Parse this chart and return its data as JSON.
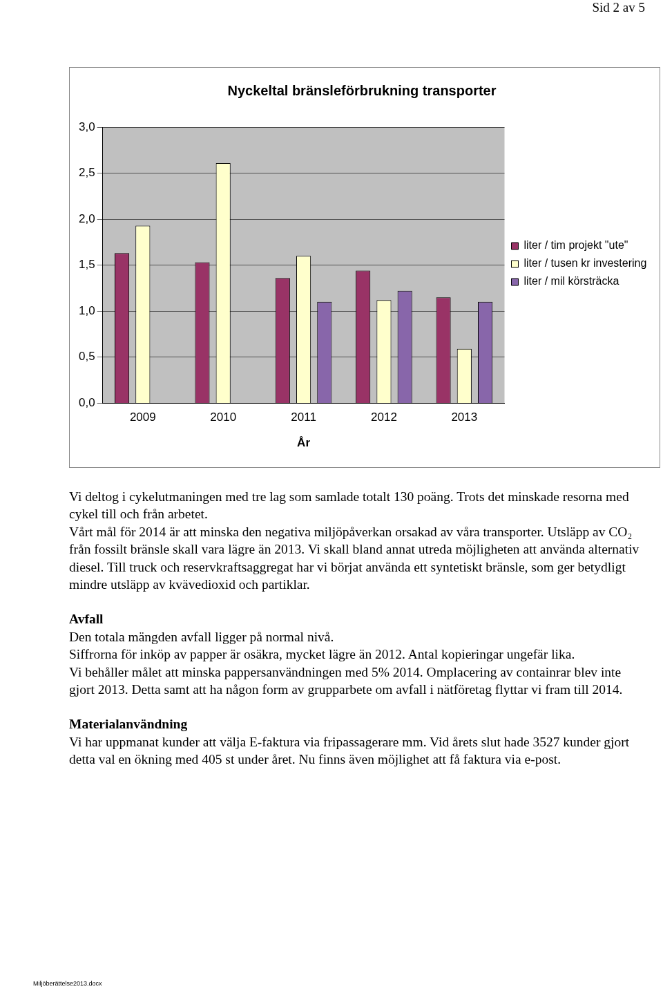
{
  "chart_data": {
    "type": "bar",
    "title": "Nyckeltal bränsleförbrukning transporter",
    "xlabel": "År",
    "categories": [
      "2009",
      "2010",
      "2011",
      "2012",
      "2013"
    ],
    "series": [
      {
        "name": "liter / tim projekt \"ute\"",
        "color": "#993366",
        "values": [
          1.63,
          1.53,
          1.36,
          1.44,
          1.15
        ]
      },
      {
        "name": "liter / tusen kr investering",
        "color": "#ffffcc",
        "values": [
          1.93,
          2.61,
          1.6,
          1.12,
          0.59
        ]
      },
      {
        "name": "liter / mil körsträcka",
        "color": "#8866aa",
        "values": [
          null,
          null,
          1.1,
          1.22,
          1.1
        ]
      }
    ],
    "ylim": [
      0,
      3
    ],
    "yticks": [
      {
        "value": 0,
        "label": "0,0"
      },
      {
        "value": 0.5,
        "label": "0,5"
      },
      {
        "value": 1,
        "label": "1,0"
      },
      {
        "value": 1.5,
        "label": "1,5"
      },
      {
        "value": 2,
        "label": "2,0"
      },
      {
        "value": 2.5,
        "label": "2,5"
      },
      {
        "value": 3,
        "label": "3,0"
      }
    ],
    "grid": "y",
    "legend": "right",
    "annotations": [
      "Sid 2 av 5",
      "Vi deltog i cykelutmaningen med tre lag som samlade totalt 130 poäng. Trots det minskade resorna med cykel till och från arbetet.",
      "Vårt mål för 2014 är att minska den negativa miljöpåverkan orsakad av våra transporter. Utsläpp av CO₂ från fossilt bränsle skall vara lägre än 2013. Vi skall bland annat utreda möjligheten att använda alternativ diesel. Till truck och reservkraftsaggregat har vi börjat använda ett syntetiskt bränsle, som ger betydligt mindre utsläpp av kvävedioxid och partiklar.",
      "Avfall",
      "Den totala mängden avfall ligger på normal nivå.",
      "Siffrorna för inköp av papper är osäkra, mycket lägre än 2012. Antal kopieringar ungefär lika.",
      "Vi behåller målet att minska pappersanvändningen med 5% 2014. Omplacering av containrar blev inte gjort 2013. Detta samt att ha någon form av grupparbete om avfall i nätföretag flyttar vi fram till 2014.",
      "Materialanvändning",
      "Vi har uppmanat kunder att välja E-faktura via fripassagerare mm. Vid årets slut hade 3527 kunder gjort detta val en ökning med 405 st under året. Nu finns även möjlighet att få faktura via e-post.",
      "Miljöberättelse2013.docx"
    ]
  }
}
